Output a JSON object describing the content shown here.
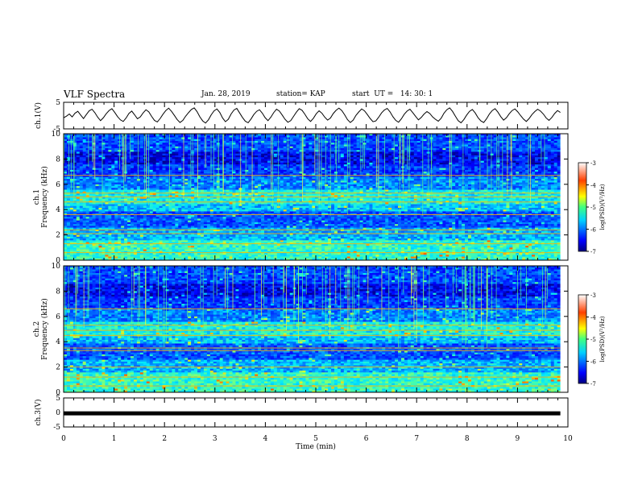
{
  "header": {
    "title": "VLF Spectra",
    "date": "Jan. 28, 2019",
    "station": "station= KAP",
    "start_ut": "start  UT =   14: 30: 1"
  },
  "chart_data": [
    {
      "type": "line",
      "id": "ch1-waveform",
      "ylabel": "ch.1(V)",
      "ylim": [
        -5,
        5
      ],
      "yticks": [
        "5",
        "-5"
      ],
      "xlim": [
        0,
        10
      ],
      "x_end": 9.85,
      "description_values": "continuous waveform oscillating roughly between -3 and 3 V over 0-9.85 min",
      "values": [
        -0.8,
        -0.2,
        0.6,
        -0.5,
        0.9,
        1.6,
        0.2,
        -1.1,
        0.4,
        1.8,
        2.4,
        1.1,
        -0.6,
        -1.9,
        -0.8,
        0.7,
        1.9,
        2.6,
        1.2,
        -0.4,
        -1.6,
        -2.2,
        -0.9,
        0.8,
        1.7,
        0.3,
        -1.2,
        -0.5,
        1.0,
        2.2,
        1.4,
        -0.3,
        -1.8,
        -2.4,
        -1.1,
        0.5,
        1.9,
        2.8,
        1.6,
        0.1,
        -1.5,
        -2.6,
        -1.8,
        -0.2,
        1.1,
        2.3,
        2.9,
        1.5,
        -0.5,
        -2.0,
        -2.8,
        -1.6,
        0.3,
        1.8,
        2.5,
        1.2,
        -0.9,
        -2.3,
        -1.4,
        0.6,
        2.1,
        2.7,
        1.0,
        -0.7,
        -2.1,
        -2.7,
        -1.3,
        0.4,
        1.6,
        2.2,
        0.9,
        -0.8,
        -1.9,
        -0.6,
        1.1,
        2.4,
        1.7,
        0.2,
        -1.4,
        -2.5,
        -1.9,
        -0.3,
        1.3,
        2.6,
        2.0,
        0.5,
        -1.2,
        -2.2,
        -1.0,
        0.7,
        1.8,
        0.9,
        -0.6,
        -1.7,
        -0.9,
        0.8,
        2.0,
        2.8,
        1.9,
        0.3,
        -1.5,
        -2.6,
        -1.7,
        0.1,
        1.4,
        2.5,
        1.8,
        0.4,
        -1.1,
        -2.3,
        -2.0,
        -0.6,
        1.0,
        2.1,
        2.7,
        1.4,
        -0.4,
        -1.8,
        -2.5,
        -1.2,
        0.5,
        1.7,
        2.4,
        1.1,
        -0.3,
        -1.6,
        -0.7,
        0.6,
        1.5,
        0.8,
        -0.5,
        -1.4,
        -2.1,
        -1.0,
        0.9,
        2.2,
        2.9,
        1.6,
        -0.2,
        -1.9,
        -2.7,
        -1.5,
        0.2,
        1.6,
        2.3,
        1.0,
        -0.8,
        -2.0,
        -2.6,
        -1.2,
        0.6,
        1.9,
        2.6,
        1.3,
        -0.4,
        -1.7,
        -0.8,
        0.7,
        1.9,
        2.5,
        1.4,
        0.0,
        -1.3,
        -2.2,
        -1.1,
        0.4,
        1.5,
        2.4,
        1.7,
        0.6,
        -0.9,
        -1.8,
        -0.7,
        0.8,
        1.9,
        1.2
      ]
    },
    {
      "type": "heatmap",
      "id": "ch1-spectrogram",
      "ylabel": "ch.1 Frequency (kHz)",
      "ylim": [
        0,
        10
      ],
      "yticks": [
        "0",
        "2",
        "4",
        "6",
        "8",
        "10"
      ],
      "xlim": [
        0,
        10
      ],
      "colorbar": {
        "label": "log(PSD)(V²/Hz)",
        "range": [
          -7,
          -3
        ],
        "ticks": [
          "-3",
          "-4",
          "-5",
          "-6",
          "-7"
        ]
      }
    },
    {
      "type": "heatmap",
      "id": "ch2-spectrogram",
      "ylabel": "ch.2 Frequency (kHz)",
      "ylim": [
        0,
        10
      ],
      "yticks": [
        "0",
        "2",
        "4",
        "6",
        "8",
        "10"
      ],
      "xlim": [
        0,
        10
      ],
      "colorbar": {
        "label": "log(PSD)(V²/Hz)",
        "range": [
          -7,
          -3
        ],
        "ticks": [
          "-3",
          "-4",
          "-5",
          "-6",
          "-7"
        ]
      }
    },
    {
      "type": "line",
      "id": "ch3-waveform",
      "ylabel": "ch.3(V)",
      "ylim": [
        -5,
        5
      ],
      "yticks": [
        "5",
        "0",
        "-5"
      ],
      "xlim": [
        0,
        10
      ],
      "x_end": 9.85,
      "values": [
        -0.3,
        -0.3
      ]
    }
  ],
  "x_axis": {
    "label": "Time  (min)",
    "ticks": [
      "0",
      "1",
      "2",
      "3",
      "4",
      "5",
      "6",
      "7",
      "8",
      "9",
      "10"
    ]
  },
  "colors": {
    "colormap": [
      "#00007f",
      "#0000ff",
      "#00a0ff",
      "#00ffff",
      "#7fff7f",
      "#ffff00",
      "#ff8000",
      "#ff0000",
      "#7f0000"
    ]
  }
}
